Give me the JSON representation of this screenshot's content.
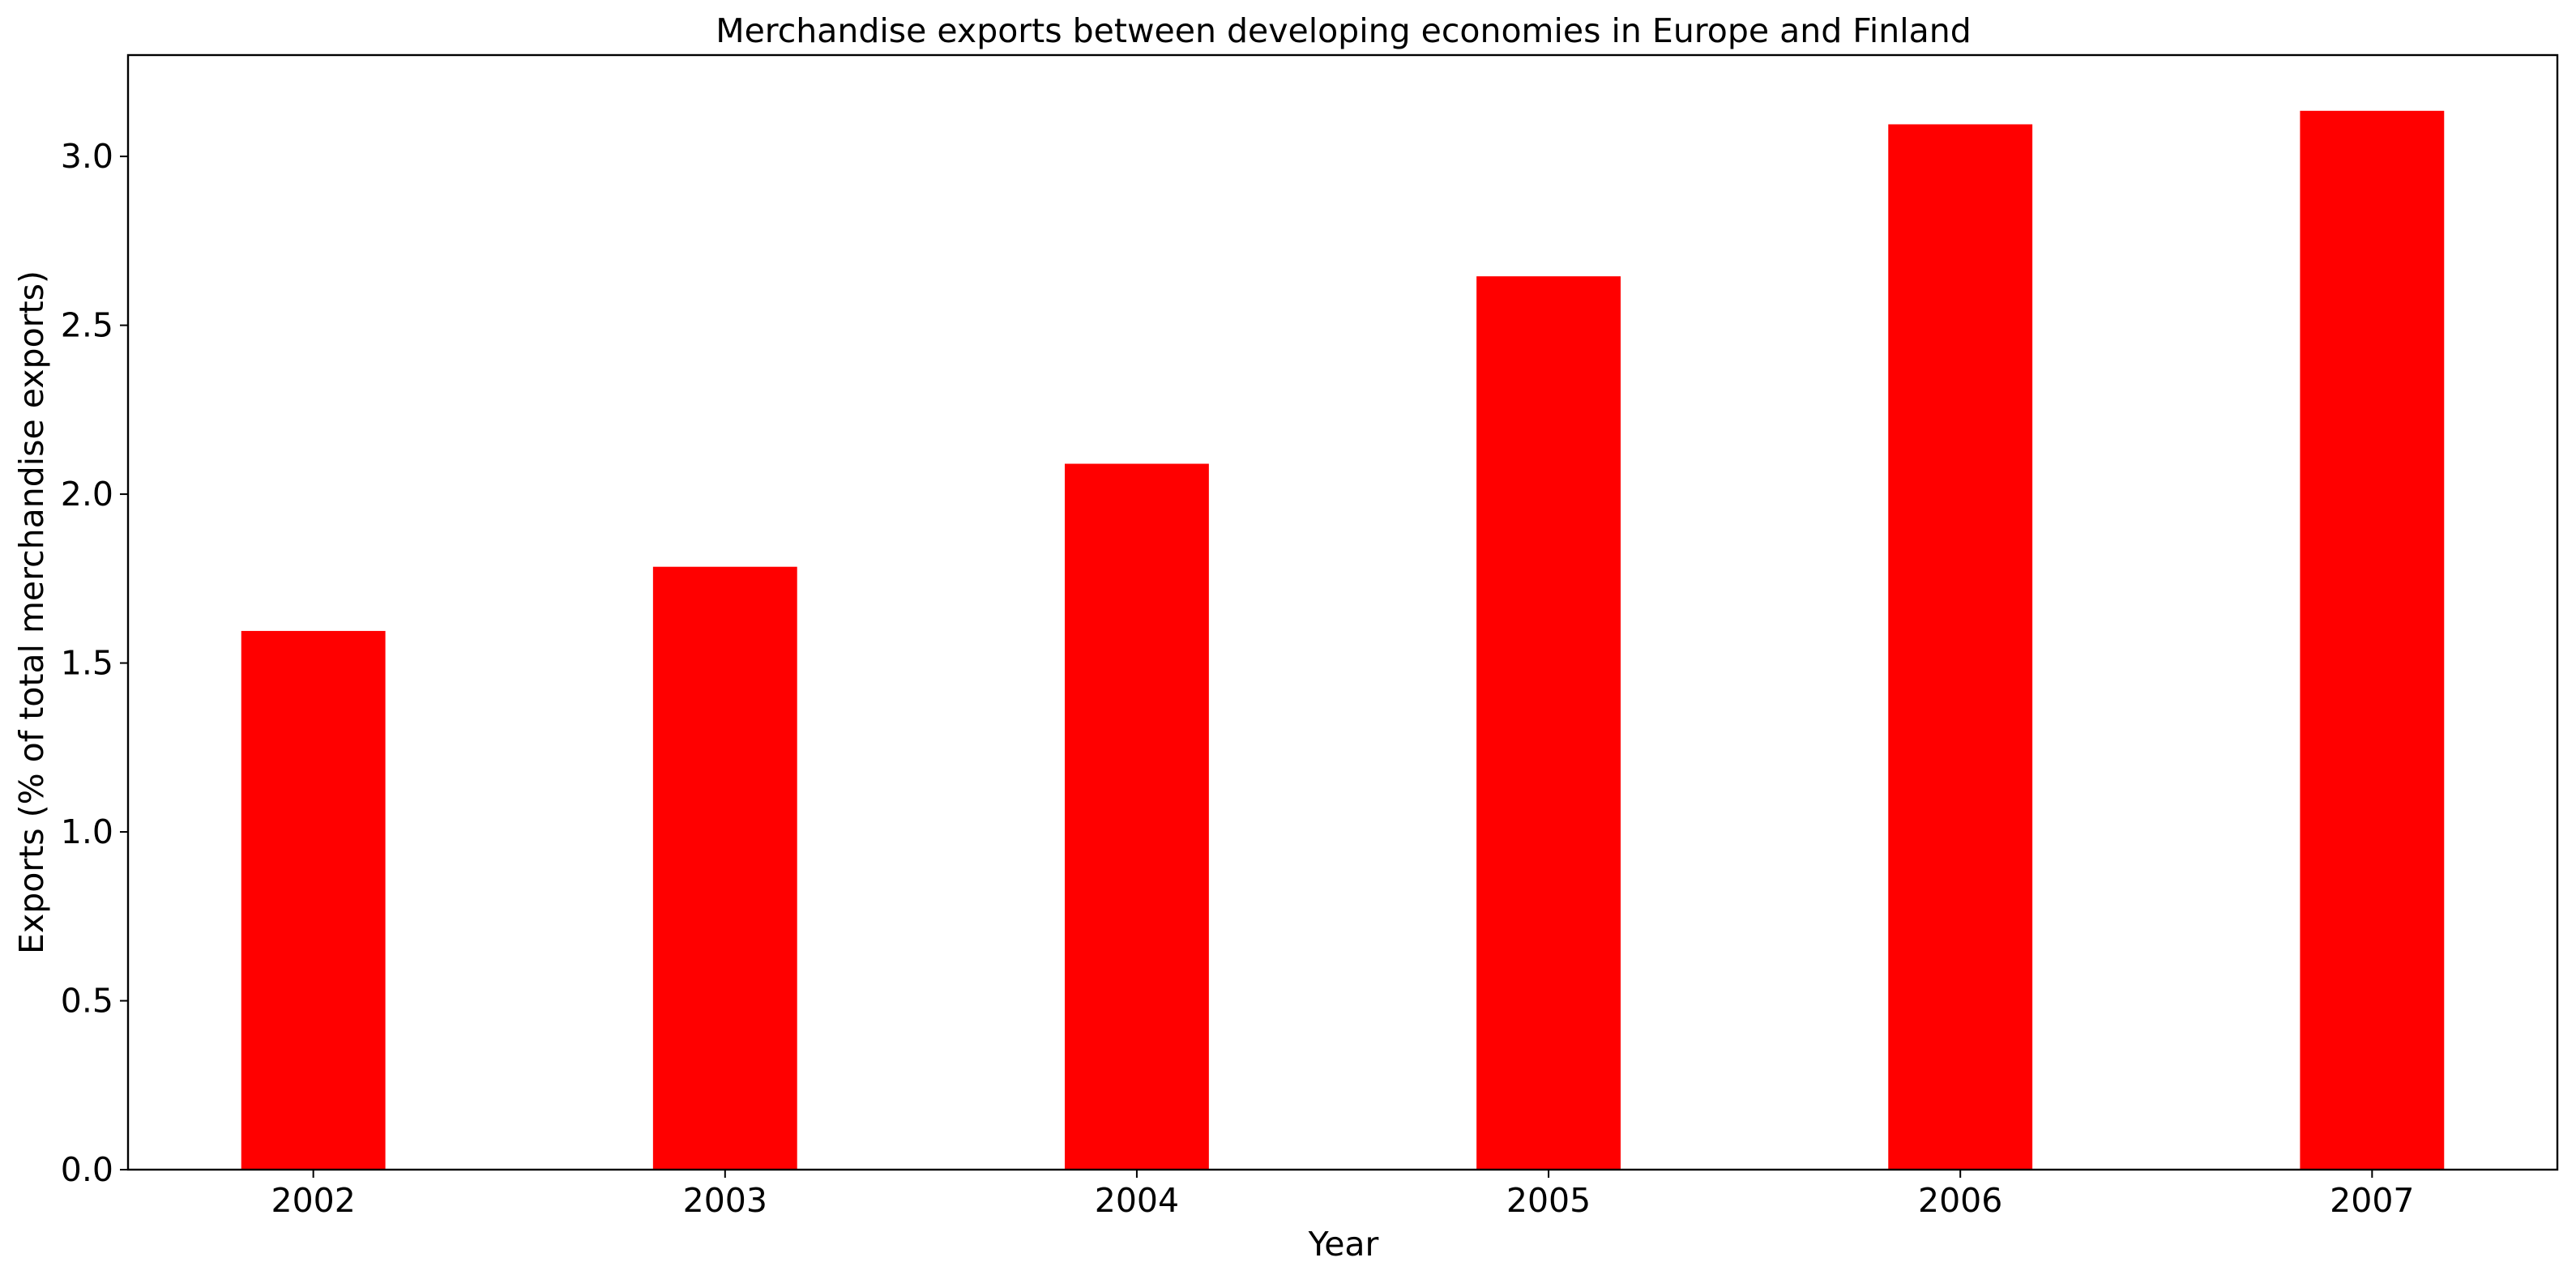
{
  "chart_data": {
    "type": "bar",
    "title": "Merchandise exports between developing economies in Europe and Finland",
    "xlabel": "Year",
    "ylabel": "Exports (% of total merchandise exports)",
    "categories": [
      "2002",
      "2003",
      "2004",
      "2005",
      "2006",
      "2007"
    ],
    "values": [
      1.595,
      1.785,
      2.09,
      2.645,
      3.095,
      3.135
    ],
    "ylim": [
      0,
      3.3
    ],
    "yticks": [
      "0.0",
      "0.5",
      "1.0",
      "1.5",
      "2.0",
      "2.5",
      "3.0"
    ],
    "grid": false,
    "legend": "none",
    "bar_color": "#ff0000"
  }
}
